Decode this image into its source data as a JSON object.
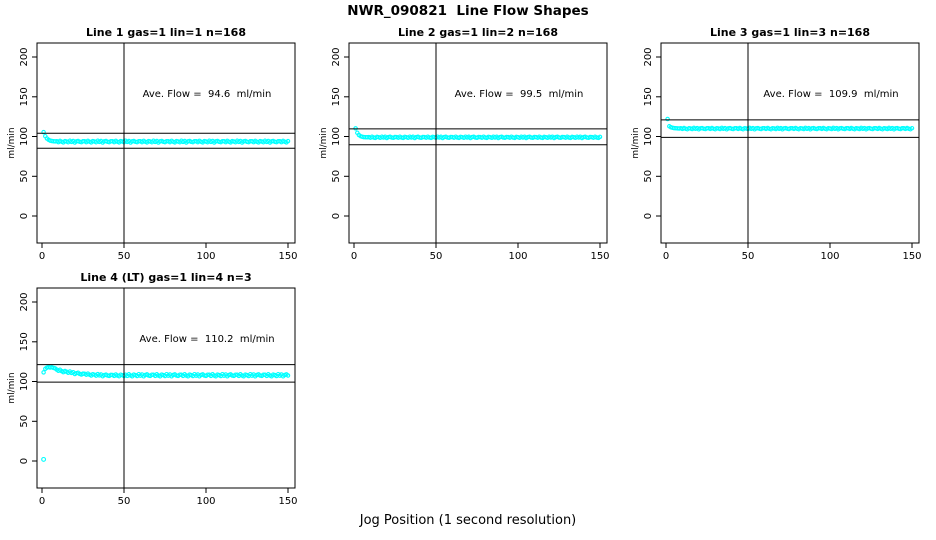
{
  "figure": {
    "title": "NWR_090821  Line Flow Shapes",
    "xlabel": "Jog Position (1 second resolution)",
    "background_color": "#ffffff",
    "point_color": "#00ffff",
    "line_color": "#000000"
  },
  "chart_data": [
    {
      "type": "scatter",
      "title": "Line 1 gas=1 lin=1 n=168",
      "ylabel": "ml/min",
      "annotation": "Ave. Flow =  94.6  ml/min",
      "ave_flow": 94.6,
      "x_ticks": [
        0,
        50,
        100,
        150
      ],
      "y_ticks": [
        0,
        50,
        100,
        150,
        200
      ],
      "vline_x": 50,
      "ref_lines": [
        104.1,
        85.1
      ],
      "series": {
        "x_first": 1,
        "x_step": 1,
        "y": [
          105.5,
          100.4,
          97.5,
          95.9,
          94.9,
          94.3,
          94.0,
          93.8,
          94.0,
          93.0,
          94.5,
          93.4,
          92.6,
          94.2,
          93.7,
          92.8,
          94.6,
          93.2,
          94.3,
          92.5,
          93.8,
          94.4,
          93.3,
          92.9,
          94.1,
          94.0,
          93.0,
          94.5,
          93.4,
          92.6,
          94.2,
          93.7,
          92.8,
          94.6,
          93.2,
          94.3,
          92.5,
          93.8,
          94.4,
          93.3,
          92.9,
          94.1,
          94.0,
          93.0,
          94.5,
          93.4,
          92.6,
          94.2,
          93.7,
          92.8,
          94.6,
          93.2,
          94.3,
          92.5,
          93.8,
          94.4,
          93.3,
          92.9,
          94.1,
          94.0,
          93.0,
          94.5,
          93.4,
          92.6,
          94.2,
          93.7,
          92.8,
          94.6,
          93.2,
          94.3,
          92.5,
          93.8,
          94.4,
          93.3,
          92.9,
          94.1,
          94.0,
          93.0,
          94.5,
          93.4,
          92.6,
          94.2,
          93.7,
          92.8,
          94.6,
          93.2,
          94.3,
          92.5,
          93.8,
          94.4,
          93.3,
          92.9,
          94.1,
          94.0,
          93.0,
          94.5,
          93.4,
          92.6,
          94.2,
          93.7,
          92.8,
          94.6,
          93.2,
          94.3,
          92.5,
          93.8,
          94.4,
          93.3,
          92.9,
          94.1,
          94.0,
          93.0,
          94.5,
          93.4,
          92.6,
          94.2,
          93.7,
          92.8,
          94.6,
          93.2,
          94.3,
          92.5,
          93.8,
          94.4,
          93.3,
          92.9,
          94.1,
          94.0,
          93.0,
          94.5,
          93.4,
          92.6,
          94.2,
          93.7,
          92.8,
          94.6,
          93.2,
          94.3,
          92.5,
          93.8,
          94.4,
          93.3,
          92.9,
          94.1,
          94.0,
          93.0,
          94.5,
          93.4,
          92.6,
          94.2
        ]
      },
      "outliers": []
    },
    {
      "type": "scatter",
      "title": "Line 2 gas=1 lin=2 n=168",
      "ylabel": "ml/min",
      "annotation": "Ave. Flow =  99.5  ml/min",
      "ave_flow": 99.5,
      "x_ticks": [
        0,
        50,
        100,
        150
      ],
      "y_ticks": [
        0,
        50,
        100,
        150,
        200
      ],
      "vline_x": 50,
      "ref_lines": [
        109.5,
        89.6
      ],
      "series": {
        "x_first": 1,
        "x_step": 1,
        "y": [
          110.2,
          104.6,
          101.9,
          100.4,
          99.7,
          99.3,
          99.1,
          99.0,
          99.3,
          98.5,
          99.7,
          98.8,
          98.2,
          99.5,
          99.1,
          98.4,
          99.8,
          98.7,
          99.6,
          98.1,
          99.2,
          99.6,
          98.8,
          98.4,
          99.4,
          99.3,
          98.5,
          99.7,
          98.8,
          98.2,
          99.5,
          99.1,
          98.4,
          99.8,
          98.7,
          99.6,
          98.1,
          99.2,
          99.6,
          98.8,
          98.4,
          99.4,
          99.3,
          98.5,
          99.7,
          98.8,
          98.2,
          99.5,
          99.1,
          98.4,
          99.8,
          98.7,
          99.6,
          98.1,
          99.2,
          99.6,
          98.8,
          98.4,
          99.4,
          99.3,
          98.5,
          99.7,
          98.8,
          98.2,
          99.5,
          99.1,
          98.4,
          99.8,
          98.7,
          99.6,
          98.1,
          99.2,
          99.6,
          98.8,
          98.4,
          99.4,
          99.3,
          98.5,
          99.7,
          98.8,
          98.2,
          99.5,
          99.1,
          98.4,
          99.8,
          98.7,
          99.6,
          98.1,
          99.2,
          99.6,
          98.8,
          98.4,
          99.4,
          99.3,
          98.5,
          99.7,
          98.8,
          98.2,
          99.5,
          99.1,
          98.4,
          99.8,
          98.7,
          99.6,
          98.1,
          99.2,
          99.6,
          98.8,
          98.4,
          99.4,
          99.3,
          98.5,
          99.7,
          98.8,
          98.2,
          99.5,
          99.1,
          98.4,
          99.8,
          98.7,
          99.6,
          98.1,
          99.2,
          99.6,
          98.8,
          98.4,
          99.4,
          99.3,
          98.5,
          99.7,
          98.8,
          98.2,
          99.5,
          99.1,
          98.4,
          99.8,
          98.7,
          99.6,
          98.1,
          99.2,
          99.6,
          98.8,
          98.4,
          99.4,
          99.3,
          98.5,
          99.7,
          98.8,
          98.2,
          99.5
        ]
      },
      "outliers": []
    },
    {
      "type": "scatter",
      "title": "Line 3 gas=1 lin=3 n=168",
      "ylabel": "ml/min",
      "annotation": "Ave. Flow =  109.9  ml/min",
      "ave_flow": 109.9,
      "x_ticks": [
        0,
        50,
        100,
        150
      ],
      "y_ticks": [
        0,
        50,
        100,
        150,
        200
      ],
      "vline_x": 50,
      "ref_lines": [
        120.9,
        98.9
      ],
      "series": {
        "x_first": 1,
        "x_step": 1,
        "y": [
          122.0,
          112.8,
          111.6,
          111.0,
          110.6,
          110.4,
          110.2,
          110.1,
          110.3,
          109.5,
          110.7,
          109.8,
          109.2,
          110.5,
          110.1,
          109.4,
          110.8,
          109.7,
          110.6,
          109.1,
          110.2,
          110.6,
          109.8,
          109.4,
          110.4,
          110.3,
          109.5,
          110.7,
          109.8,
          109.2,
          110.5,
          110.1,
          109.4,
          110.8,
          109.7,
          110.6,
          109.1,
          110.2,
          110.6,
          109.8,
          109.4,
          110.4,
          110.3,
          109.5,
          110.7,
          109.8,
          109.2,
          110.5,
          110.1,
          109.4,
          110.8,
          109.7,
          110.6,
          109.1,
          110.2,
          110.6,
          109.8,
          109.4,
          110.4,
          110.3,
          109.5,
          110.7,
          109.8,
          109.2,
          110.5,
          110.1,
          109.4,
          110.8,
          109.7,
          110.6,
          109.1,
          110.2,
          110.6,
          109.8,
          109.4,
          110.4,
          110.3,
          109.5,
          110.7,
          109.8,
          109.2,
          110.5,
          110.1,
          109.4,
          110.8,
          109.7,
          110.6,
          109.1,
          110.2,
          110.6,
          109.8,
          109.4,
          110.4,
          110.3,
          109.5,
          110.7,
          109.8,
          109.2,
          110.5,
          110.1,
          109.4,
          110.8,
          109.7,
          110.6,
          109.1,
          110.2,
          110.6,
          109.8,
          109.4,
          110.4,
          110.3,
          109.5,
          110.7,
          109.8,
          109.2,
          110.5,
          110.1,
          109.4,
          110.8,
          109.7,
          110.6,
          109.1,
          110.2,
          110.6,
          109.8,
          109.4,
          110.4,
          110.3,
          109.5,
          110.7,
          109.8,
          109.2,
          110.5,
          110.1,
          109.4,
          110.8,
          109.7,
          110.6,
          109.1,
          110.2,
          110.6,
          109.8,
          109.4,
          110.4,
          110.3,
          109.5,
          110.7,
          109.8,
          109.2,
          110.5
        ]
      },
      "outliers": []
    },
    {
      "type": "scatter",
      "title": "Line 4 (LT) gas=1 lin=4 n=3",
      "ylabel": "ml/min",
      "annotation": "Ave. Flow =  110.2  ml/min",
      "ave_flow": 110.2,
      "x_ticks": [
        0,
        50,
        100,
        150
      ],
      "y_ticks": [
        0,
        50,
        100,
        150,
        200
      ],
      "vline_x": 50,
      "ref_lines": [
        121.2,
        99.2
      ],
      "series": {
        "x_first": 1,
        "x_step": 1,
        "y": [
          111.5,
          116.0,
          117.5,
          118.2,
          117.6,
          117.9,
          117.1,
          116.5,
          115.0,
          113.4,
          114.7,
          113.1,
          111.8,
          113.2,
          112.2,
          110.9,
          112.6,
          110.8,
          111.7,
          109.4,
          110.5,
          111.0,
          109.6,
          108.8,
          109.9,
          109.7,
          108.5,
          109.9,
          108.6,
          107.5,
          109.2,
          108.5,
          107.4,
          109.3,
          107.7,
          108.8,
          106.7,
          108.1,
          108.7,
          107.5,
          107.0,
          108.3,
          108.2,
          107.1,
          108.8,
          107.6,
          106.7,
          108.5,
          107.9,
          106.9,
          108.4,
          107.1,
          109.1,
          107.6,
          106.6,
          108.7,
          108.0,
          106.9,
          109.2,
          107.4,
          108.8,
          106.5,
          108.2,
          108.9,
          107.5,
          107.0,
          108.6,
          108.4,
          107.1,
          109.1,
          107.6,
          106.6,
          108.7,
          108.0,
          106.9,
          109.2,
          107.4,
          108.8,
          106.5,
          108.2,
          108.9,
          107.5,
          107.0,
          108.6,
          108.4,
          107.1,
          109.1,
          107.6,
          106.6,
          108.7,
          108.0,
          106.9,
          109.2,
          107.4,
          108.8,
          106.5,
          108.2,
          108.9,
          107.5,
          107.0,
          108.6,
          108.4,
          107.1,
          109.1,
          107.6,
          106.6,
          108.7,
          108.0,
          106.9,
          109.2,
          107.4,
          108.8,
          106.5,
          108.2,
          108.9,
          107.5,
          107.0,
          108.6,
          108.4,
          107.1,
          109.1,
          107.6,
          106.6,
          108.7,
          108.0,
          106.9,
          109.2,
          107.4,
          108.8,
          106.5,
          108.2,
          108.9,
          107.5,
          107.0,
          108.6,
          108.4,
          107.1,
          109.1,
          107.6,
          106.6,
          108.7,
          108.0,
          106.9,
          109.2,
          107.4,
          108.8,
          106.5,
          108.2,
          108.9,
          107.5
        ]
      },
      "outliers": [
        [
          1,
          2.0
        ]
      ]
    }
  ]
}
